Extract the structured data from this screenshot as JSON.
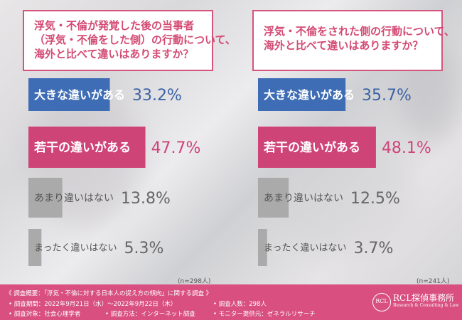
{
  "question_left": {
    "line1": "浮気・不倫が発覚した後の当事者",
    "line2": "（浮気・不倫をした側）の行動について、",
    "line3": "海外と比べて違いはありますか？"
  },
  "question_right": {
    "line1": "浮気・不倫をされた側の行動について、",
    "line2": "海外と比べて違いはありますか？"
  },
  "n_left": "(n=298人)",
  "n_right": "(n=241人)",
  "colors": {
    "blue": "#3e6db5",
    "pink": "#cf4477",
    "gray": "#aaaaaa",
    "value_blue": "#3c63a6",
    "value_pink": "#cf4477",
    "value_gray": "#666666"
  },
  "chart_data": [
    {
      "type": "bar",
      "categories": [
        "大きな違いがある",
        "若干の違いがある",
        "あまり違いはない",
        "まったく違いはない"
      ],
      "values": [
        33.2,
        47.7,
        13.8,
        5.3
      ],
      "value_labels": [
        "33.2%",
        "47.7%",
        "13.8%",
        "5.3%"
      ],
      "unit": "%"
    },
    {
      "type": "bar",
      "categories": [
        "大きな違いがある",
        "若干の違いがある",
        "あまり違いはない",
        "まったく違いはない"
      ],
      "values": [
        35.7,
        48.1,
        12.5,
        3.7
      ],
      "value_labels": [
        "35.7%",
        "48.1%",
        "12.5%",
        "3.7%"
      ],
      "unit": "%"
    }
  ],
  "footer": {
    "title": "《 調査概要：「浮気・不倫に対する日本人の捉え方の傾向」に関する調査 》",
    "period": "• 調査期間：2022年9月21日（水）～2022年9月22日（木）",
    "people": "• 調査人数：298人",
    "target": "• 調査対象：社会心理学者",
    "method": "• 調査方法：インターネット調査",
    "provider": "• モニター提供元：ゼネラルリサーチ"
  },
  "logo": {
    "mark": "RCL",
    "name": "RCL探偵事務所",
    "sub": "Research & Consulting & Law"
  }
}
